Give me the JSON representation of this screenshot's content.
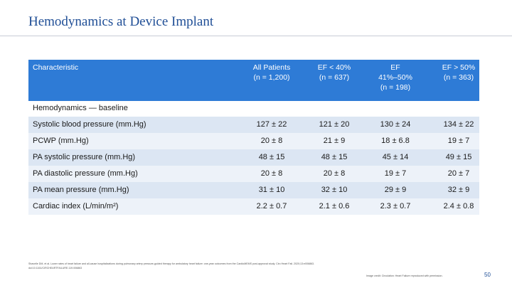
{
  "title": "Hemodynamics at Device Implant",
  "table": {
    "headers": [
      "Characteristic",
      "All Patients\n(n = 1,200)",
      "EF < 40%\n(n = 637)",
      "EF\n41%–50%\n(n = 198)",
      "EF > 50%\n(n = 363)"
    ],
    "section_label": "Hemodynamics — baseline",
    "rows": [
      {
        "label": "Systolic blood pressure (mm.Hg)",
        "cells": [
          "127 ± 22",
          "121 ± 20",
          "130 ± 24",
          "134 ± 22"
        ]
      },
      {
        "label": "PCWP (mm.Hg)",
        "cells": [
          "20 ± 8",
          "21 ± 9",
          "18 ± 6.8",
          "19 ± 7"
        ]
      },
      {
        "label": "PA systolic pressure (mm.Hg)",
        "cells": [
          "48 ± 15",
          "48 ± 15",
          "45 ± 14",
          "49 ± 15"
        ]
      },
      {
        "label": "PA diastolic pressure (mm.Hg)",
        "cells": [
          "20 ± 8",
          "20 ± 8",
          "19 ± 7",
          "20 ± 7"
        ]
      },
      {
        "label": "PA mean pressure (mm.Hg)",
        "cells": [
          "31 ± 10",
          "32 ± 10",
          "29 ± 9",
          "32 ± 9"
        ]
      },
      {
        "label": "Cardiac index (L/min/m²)",
        "cells": [
          "2.2 ± 0.7",
          "2.1 ± 0.6",
          "2.3 ± 0.7",
          "2.4 ± 0.8"
        ]
      }
    ]
  },
  "footnote": "Shavelle DM, et al. Lower rates of heart failure and all-cause hospitalizations during pulmonary artery pressure-guided therapy for ambulatory heart failure: one-year outcomes from the CardioMEMS post-approval study. Circ Heart Fail. 2020;13:e006863. doi:10.1161/CIRCHEARTFAILURE.119.006863",
  "credit": "Image credit: Circulation: Heart Failure reproduced with permission.",
  "page_number": "50"
}
